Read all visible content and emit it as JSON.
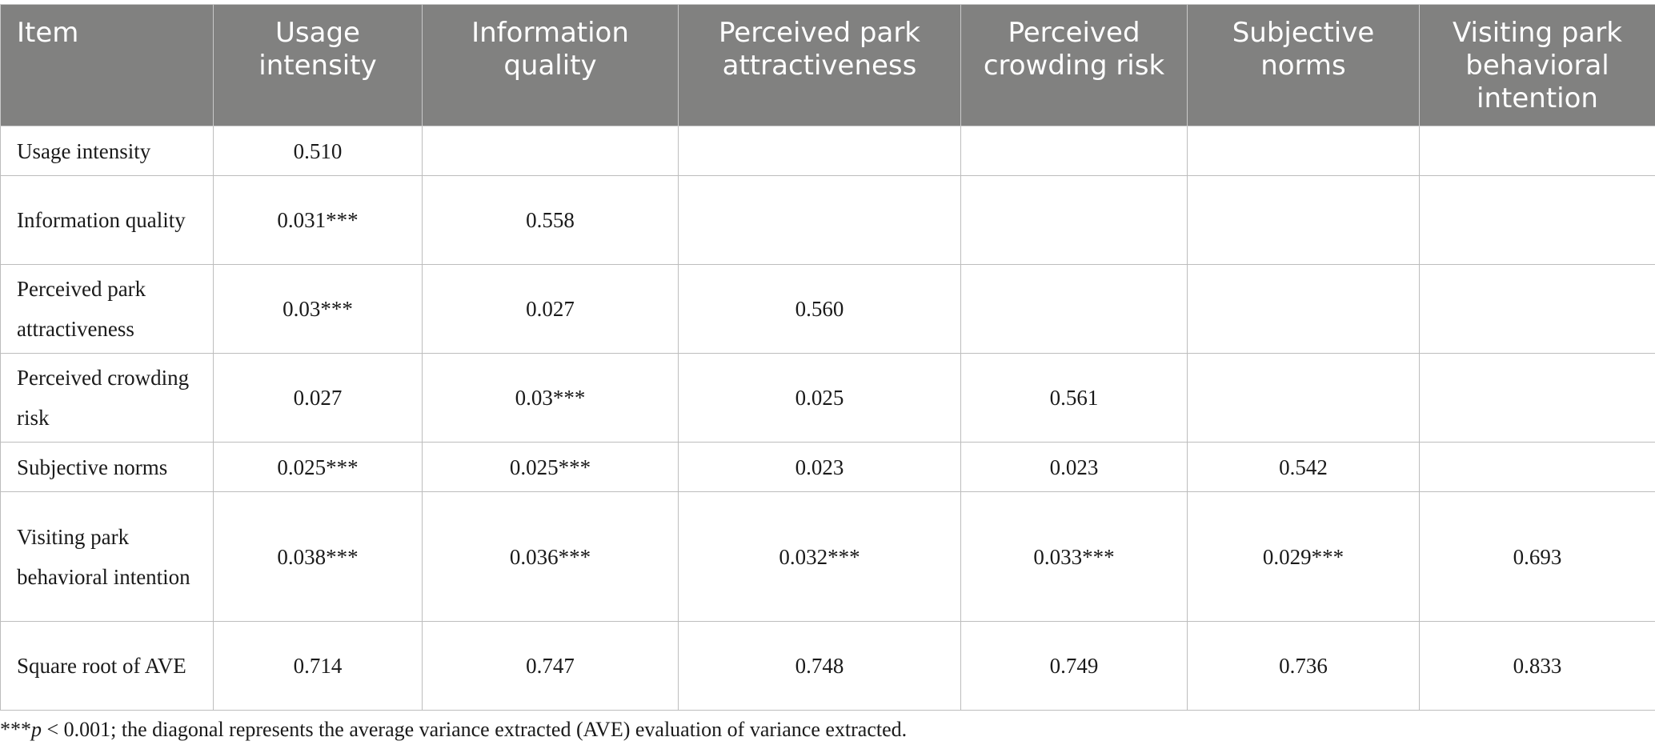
{
  "table": {
    "columns": [
      "Item",
      "Usage intensity",
      "Information quality",
      "Perceived park attractiveness",
      "Perceived crowding risk",
      "Subjective norms",
      "Visiting park behavioral intention"
    ],
    "rows": [
      {
        "label": "Usage intensity",
        "cells": [
          "0.510",
          "",
          "",
          "",
          "",
          ""
        ]
      },
      {
        "label": "Information quality",
        "cells": [
          "0.031***",
          "0.558",
          "",
          "",
          "",
          ""
        ]
      },
      {
        "label": "Perceived park attractiveness",
        "cells": [
          "0.03***",
          "0.027",
          "0.560",
          "",
          "",
          ""
        ]
      },
      {
        "label": "Perceived crowding risk",
        "cells": [
          "0.027",
          "0.03***",
          "0.025",
          "0.561",
          "",
          ""
        ]
      },
      {
        "label": "Subjective norms",
        "cells": [
          "0.025***",
          "0.025***",
          "0.023",
          "0.023",
          "0.542",
          ""
        ]
      },
      {
        "label": "Visiting park behavioral intention",
        "cells": [
          "0.038***",
          "0.036***",
          "0.032***",
          "0.033***",
          "0.029***",
          "0.693"
        ]
      },
      {
        "label": "Square root of AVE",
        "cells": [
          "0.714",
          "0.747",
          "0.748",
          "0.749",
          "0.736",
          "0.833"
        ]
      }
    ]
  },
  "footnote": {
    "stars": "***",
    "p_symbol": "p",
    "text": " < 0.001; the diagonal represents the average variance extracted (AVE) evaluation of variance extracted."
  }
}
